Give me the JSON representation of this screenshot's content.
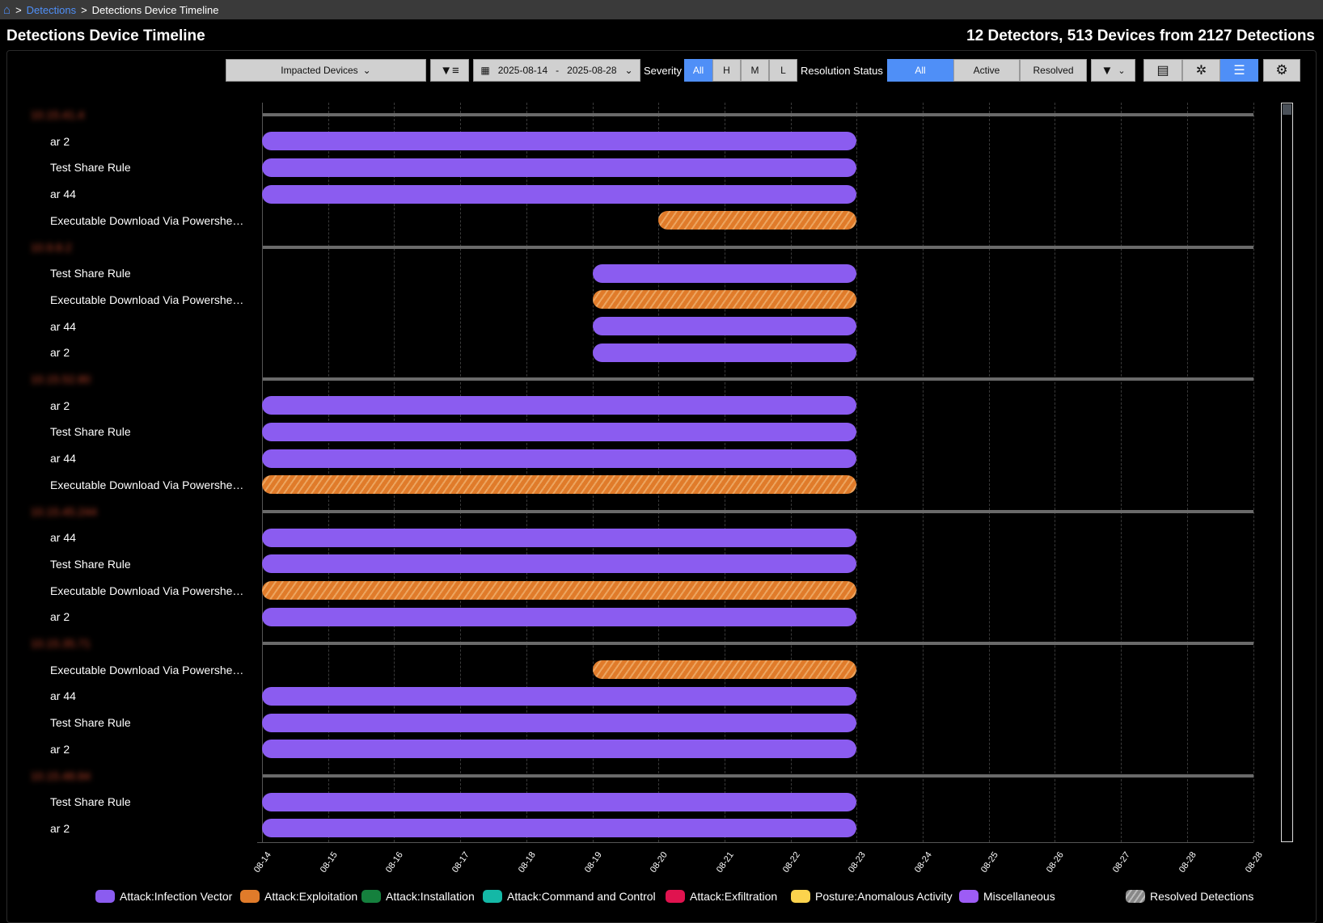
{
  "breadcrumb": {
    "link": "Detections",
    "current": "Detections Device Timeline",
    "sep": ">"
  },
  "title": "Detections Device Timeline",
  "summary": "12 Detectors, 513 Devices from 2127 Detections",
  "toolbar": {
    "group_by": "Impacted Devices",
    "date_start": "2025-08-14",
    "date_sep": "-",
    "date_end": "2025-08-28",
    "severity_label": "Severity",
    "severity": [
      "All",
      "H",
      "M",
      "L"
    ],
    "severity_selected": "All",
    "resolution_label": "Resolution Status",
    "resolution": [
      "All",
      "Active",
      "Resolved"
    ],
    "resolution_selected": "All"
  },
  "colors": {
    "purple": "#8b5cf0",
    "orange": "#e07b2a",
    "accent": "#4f8ff7"
  },
  "axis": {
    "ticks": [
      "08-14",
      "08-15",
      "08-16",
      "08-17",
      "08-18",
      "08-19",
      "08-20",
      "08-21",
      "08-22",
      "08-23",
      "08-24",
      "08-25",
      "08-26",
      "08-27",
      "08-28",
      "08-28"
    ]
  },
  "groups": [
    {
      "device": "10.15.41.4",
      "rows": [
        {
          "name": "ar 2",
          "start": 0,
          "end": 9,
          "type": "purple"
        },
        {
          "name": "Test Share Rule",
          "start": 0,
          "end": 9,
          "type": "purple"
        },
        {
          "name": "ar 44",
          "start": 0,
          "end": 9,
          "type": "purple"
        },
        {
          "name": "Executable Download Via Powershe…",
          "start": 6,
          "end": 9,
          "type": "orange"
        }
      ]
    },
    {
      "device": "10.9.8.2",
      "rows": [
        {
          "name": "Test Share Rule",
          "start": 5,
          "end": 9,
          "type": "purple"
        },
        {
          "name": "Executable Download Via Powershe…",
          "start": 5,
          "end": 9,
          "type": "orange"
        },
        {
          "name": "ar 44",
          "start": 5,
          "end": 9,
          "type": "purple"
        },
        {
          "name": "ar 2",
          "start": 5,
          "end": 9,
          "type": "purple"
        }
      ]
    },
    {
      "device": "10.15.52.80",
      "rows": [
        {
          "name": "ar 2",
          "start": 0,
          "end": 9,
          "type": "purple"
        },
        {
          "name": "Test Share Rule",
          "start": 0,
          "end": 9,
          "type": "purple"
        },
        {
          "name": "ar 44",
          "start": 0,
          "end": 9,
          "type": "purple"
        },
        {
          "name": "Executable Download Via Powershe…",
          "start": 0,
          "end": 9,
          "type": "orange"
        }
      ]
    },
    {
      "device": "10.15.45.244",
      "rows": [
        {
          "name": "ar 44",
          "start": 0,
          "end": 9,
          "type": "purple"
        },
        {
          "name": "Test Share Rule",
          "start": 0,
          "end": 9,
          "type": "purple"
        },
        {
          "name": "Executable Download Via Powershe…",
          "start": 0,
          "end": 9,
          "type": "orange"
        },
        {
          "name": "ar 2",
          "start": 0,
          "end": 9,
          "type": "purple"
        }
      ]
    },
    {
      "device": "10.15.35.71",
      "rows": [
        {
          "name": "Executable Download Via Powershe…",
          "start": 5,
          "end": 9,
          "type": "orange"
        },
        {
          "name": "ar 44",
          "start": 0,
          "end": 9,
          "type": "purple"
        },
        {
          "name": "Test Share Rule",
          "start": 0,
          "end": 9,
          "type": "purple"
        },
        {
          "name": "ar 2",
          "start": 0,
          "end": 9,
          "type": "purple"
        }
      ]
    },
    {
      "device": "10.15.48.84",
      "rows": [
        {
          "name": "Test Share Rule",
          "start": 0,
          "end": 9,
          "type": "purple"
        },
        {
          "name": "ar 2",
          "start": 0,
          "end": 9,
          "type": "purple"
        }
      ]
    }
  ],
  "legend": [
    {
      "label": "Attack:Infection Vector",
      "color": "#8b5cf0"
    },
    {
      "label": "Attack:Exploitation",
      "color": "#e07b2a"
    },
    {
      "label": "Attack:Installation",
      "color": "#15803d"
    },
    {
      "label": "Attack:Command and Control",
      "color": "#14b8a6"
    },
    {
      "label": "Attack:Exfiltration",
      "color": "#e0134f"
    },
    {
      "label": "Posture:Anomalous Activity",
      "color": "#fcd34d"
    },
    {
      "label": "Miscellaneous",
      "color": "#9d5cf5"
    }
  ],
  "legend_resolved": "Resolved Detections"
}
